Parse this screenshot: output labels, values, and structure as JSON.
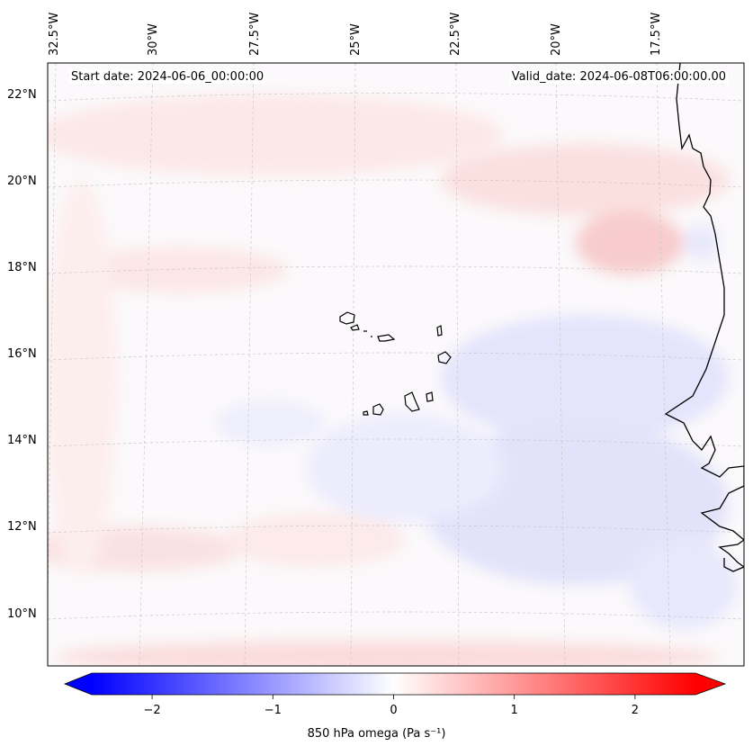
{
  "map": {
    "start_date": "Start date: 2024-06-06_00:00:00",
    "valid_date": "Valid_date: 2024-06-08T06:00:00.00",
    "lon_labels": [
      "32.5°W",
      "30°W",
      "27.5°W",
      "25°W",
      "22.5°W",
      "20°W",
      "17.5°W"
    ],
    "lat_labels": [
      "22°N",
      "20°N",
      "18°N",
      "16°N",
      "14°N",
      "12°N",
      "10°N"
    ],
    "colorbar": {
      "label": "850 hPa omega (Pa s⁻¹)",
      "ticks": [
        "−2",
        "−1",
        "0",
        "1",
        "2"
      ],
      "tick_values": [
        -2,
        -1,
        0,
        1,
        2
      ],
      "range": [
        -2.5,
        2.5
      ],
      "colors": {
        "negative": "#0000ff",
        "zero": "#ffffff",
        "positive": "#ff0000"
      }
    }
  }
}
